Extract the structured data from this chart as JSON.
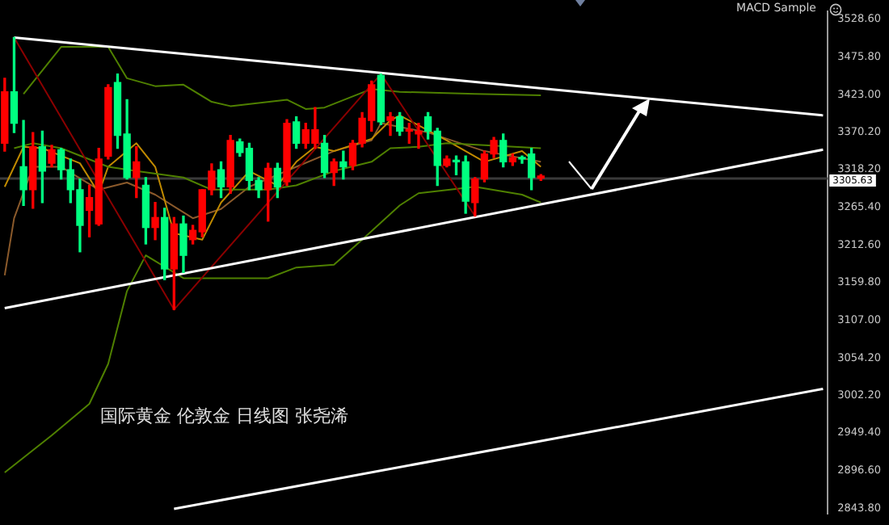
{
  "chart_data": {
    "type": "candlestick",
    "tick_labels": "y",
    "annotations": [
      "国际黄金 伦敦金 日线图 张尧浠",
      "MACD Sample"
    ],
    "categories": [
      null,
      null,
      null,
      null,
      null,
      null,
      null,
      null,
      null,
      null,
      null,
      null,
      null,
      null,
      null,
      null,
      null,
      null,
      null,
      null,
      null,
      null,
      null,
      null,
      null,
      null,
      null,
      null,
      null,
      null,
      null,
      null,
      null,
      null,
      null,
      null,
      null,
      null,
      null,
      null,
      null,
      null,
      null,
      null,
      null,
      null,
      null,
      null,
      null,
      null,
      null,
      null,
      null,
      null,
      null,
      null,
      null,
      null,
      null,
      null,
      null,
      null,
      null,
      null,
      null,
      null,
      null,
      null,
      null,
      null,
      null,
      null,
      null,
      null,
      null,
      null,
      null,
      null,
      null,
      null,
      null,
      null,
      null,
      null,
      null,
      null,
      null,
      null
    ],
    "ohlc": [
      [
        3427,
        3446,
        3344,
        3355
      ],
      [
        3383,
        3503,
        3370,
        3427
      ],
      [
        3290,
        3387,
        3268,
        3322
      ],
      [
        3350,
        3370,
        3264,
        3290
      ],
      [
        3316,
        3372,
        3272,
        3350
      ],
      [
        3346,
        3352,
        3322,
        3327
      ],
      [
        3318,
        3348,
        3305,
        3346
      ],
      [
        3290,
        3333,
        3272,
        3318
      ],
      [
        3240,
        3305,
        3203,
        3290
      ],
      [
        3279,
        3296,
        3224,
        3261
      ],
      [
        3333,
        3348,
        3240,
        3242
      ],
      [
        3433,
        3437,
        3333,
        3337
      ],
      [
        3366,
        3452,
        3348,
        3440
      ],
      [
        3307,
        3416,
        3305,
        3368
      ],
      [
        3329,
        3350,
        3279,
        3307
      ],
      [
        3237,
        3307,
        3214,
        3296
      ],
      [
        3251,
        3272,
        3220,
        3237
      ],
      [
        3179,
        3264,
        3164,
        3251
      ],
      [
        3242,
        3251,
        3122,
        3179
      ],
      [
        3198,
        3253,
        3174,
        3242
      ],
      [
        3233,
        3240,
        3214,
        3220
      ],
      [
        3290,
        3290,
        3224,
        3231
      ],
      [
        3316,
        3326,
        3283,
        3290
      ],
      [
        3294,
        3329,
        3279,
        3318
      ],
      [
        3359,
        3366,
        3285,
        3294
      ],
      [
        3342,
        3361,
        3337,
        3357
      ],
      [
        3303,
        3355,
        3290,
        3348
      ],
      [
        3290,
        3307,
        3279,
        3303
      ],
      [
        3320,
        3327,
        3246,
        3290
      ],
      [
        3294,
        3327,
        3279,
        3320
      ],
      [
        3383,
        3388,
        3296,
        3301
      ],
      [
        3355,
        3392,
        3348,
        3385
      ],
      [
        3374,
        3383,
        3348,
        3355
      ],
      [
        3374,
        3405,
        3348,
        3355
      ],
      [
        3314,
        3366,
        3307,
        3355
      ],
      [
        3329,
        3333,
        3296,
        3314
      ],
      [
        3322,
        3344,
        3305,
        3329
      ],
      [
        3355,
        3359,
        3318,
        3324
      ],
      [
        3390,
        3398,
        3350,
        3355
      ],
      [
        3437,
        3442,
        3372,
        3387
      ],
      [
        3385,
        3452,
        3381,
        3450
      ],
      [
        3392,
        3398,
        3366,
        3387
      ],
      [
        3372,
        3398,
        3366,
        3392
      ],
      [
        3374,
        3383,
        3355,
        3372
      ],
      [
        3372,
        3383,
        3348,
        3368
      ],
      [
        3372,
        3398,
        3361,
        3392
      ],
      [
        3324,
        3376,
        3296,
        3372
      ],
      [
        3333,
        3337,
        3322,
        3324
      ],
      [
        3329,
        3337,
        3311,
        3331
      ],
      [
        3274,
        3337,
        3257,
        3329
      ],
      [
        3305,
        3307,
        3253,
        3272
      ],
      [
        3340,
        3344,
        3301,
        3305
      ],
      [
        3359,
        3363,
        3335,
        3340
      ],
      [
        3329,
        3368,
        3322,
        3359
      ],
      [
        3335,
        3340,
        3324,
        3329
      ],
      [
        3333,
        3337,
        3327,
        3335
      ],
      [
        3307,
        3348,
        3290,
        3340
      ],
      [
        3309,
        3311,
        3303,
        3306
      ],
      null,
      null,
      null,
      null,
      null,
      null,
      null,
      null,
      null,
      null,
      null,
      null,
      null,
      null,
      null,
      null,
      null,
      null,
      null,
      null,
      null,
      null,
      null,
      null,
      null,
      null,
      null,
      null,
      null,
      null
    ],
    "colors": [
      "#ff0000",
      "#00ff80",
      "#00ff80",
      "#ff0000",
      "#00ff80",
      "#ff0000",
      "#00ff80",
      "#00ff80",
      "#00ff80",
      "#ff0000",
      "#ff0000",
      "#ff0000",
      "#00ff80",
      "#00ff80",
      "#ff0000",
      "#00ff80",
      "#ff0000",
      "#00ff80",
      "#ff0000",
      "#00ff80",
      "#ff0000",
      "#ff0000",
      "#ff0000",
      "#00ff80",
      "#ff0000",
      "#00ff80",
      "#00ff80",
      "#00ff80",
      "#ff0000",
      "#00ff80",
      "#ff0000",
      "#00ff80",
      "#ff0000",
      "#ff0000",
      "#00ff80",
      "#ff0000",
      "#00ff80",
      "#ff0000",
      "#ff0000",
      "#ff0000",
      "#00ff80",
      "#ff0000",
      "#00ff80",
      "#ff0000",
      "#ff0000",
      "#00ff80",
      "#00ff80",
      "#ff0000",
      "#00ff80",
      "#00ff80",
      "#ff0000",
      "#ff0000",
      "#ff0000",
      "#00ff80",
      "#ff0000",
      "#00ff80",
      "#00ff80",
      "#ff0000",
      null,
      null,
      null,
      null,
      null,
      null,
      null,
      null,
      null,
      null,
      null,
      null,
      null,
      null,
      null,
      null,
      null,
      null,
      null,
      null,
      null,
      null,
      null,
      null,
      null,
      null,
      null,
      null,
      null,
      null
    ],
    "series": [
      {
        "type": "line",
        "color": "#ffffff",
        "values": [
          null,
          3503,
          null,
          null,
          null,
          null,
          null,
          null,
          null,
          null,
          null,
          null,
          null,
          null,
          null,
          null,
          null,
          null,
          null,
          null,
          null,
          null,
          null,
          null,
          null,
          null,
          null,
          null,
          null,
          null,
          null,
          null,
          null,
          null,
          null,
          null,
          null,
          null,
          null,
          null,
          null,
          null,
          null,
          null,
          null,
          null,
          null,
          null,
          null,
          null,
          null,
          null,
          null,
          null,
          null,
          null,
          null,
          null,
          null,
          null,
          null,
          null,
          null,
          null,
          null,
          null,
          null,
          null,
          null,
          null,
          null,
          null,
          null,
          null,
          null,
          null,
          null,
          null,
          null,
          null,
          null,
          null,
          null,
          null,
          null,
          null,
          null,
          3394
        ]
      },
      {
        "type": "line",
        "color": "#ffffff",
        "values": [
          3124,
          null,
          null,
          null,
          null,
          null,
          null,
          null,
          null,
          null,
          null,
          null,
          null,
          null,
          null,
          null,
          null,
          null,
          null,
          null,
          null,
          null,
          null,
          null,
          null,
          null,
          null,
          null,
          null,
          null,
          null,
          null,
          null,
          null,
          null,
          null,
          null,
          null,
          null,
          null,
          null,
          null,
          null,
          null,
          null,
          null,
          null,
          null,
          null,
          null,
          null,
          null,
          null,
          null,
          null,
          null,
          null,
          null,
          null,
          null,
          null,
          null,
          null,
          null,
          null,
          null,
          null,
          null,
          null,
          null,
          null,
          null,
          null,
          null,
          null,
          null,
          null,
          null,
          null,
          null,
          null,
          null,
          null,
          null,
          null,
          null,
          null,
          3346
        ]
      },
      {
        "type": "line",
        "color": "#ffffff",
        "values": [
          null,
          null,
          null,
          null,
          null,
          null,
          null,
          null,
          null,
          null,
          null,
          null,
          null,
          null,
          null,
          null,
          null,
          null,
          2843,
          null,
          null,
          null,
          null,
          null,
          null,
          null,
          null,
          null,
          null,
          null,
          null,
          null,
          null,
          null,
          null,
          null,
          null,
          null,
          null,
          null,
          null,
          null,
          null,
          null,
          null,
          null,
          null,
          null,
          null,
          null,
          null,
          null,
          null,
          null,
          null,
          null,
          null,
          null,
          null,
          null,
          null,
          null,
          null,
          null,
          null,
          null,
          null,
          null,
          null,
          null,
          null,
          null,
          null,
          null,
          null,
          null,
          null,
          null,
          null,
          null,
          null,
          null,
          null,
          null,
          null,
          null,
          null,
          3011
        ]
      },
      {
        "type": "line",
        "color": "#8b0000",
        "values": [
          null,
          3503,
          null,
          null,
          null,
          null,
          null,
          null,
          null,
          null,
          null,
          null,
          null,
          null,
          null,
          null,
          null,
          null,
          3122,
          null,
          null,
          null,
          null,
          null,
          null,
          null,
          null,
          null,
          null,
          null,
          null,
          null,
          null,
          null,
          null,
          null,
          null,
          null,
          null,
          null,
          3452,
          null,
          null,
          null,
          null,
          null,
          null,
          null,
          null,
          null,
          3253,
          null,
          null,
          null,
          null,
          null,
          null,
          null,
          null,
          null,
          null,
          null,
          null,
          null,
          null,
          null,
          null,
          null,
          null,
          null,
          null,
          null,
          null,
          null,
          null,
          null,
          null,
          null,
          null,
          null,
          null,
          null,
          null,
          null,
          null,
          null,
          null,
          null
        ]
      },
      {
        "type": "line",
        "color": "#4f8000",
        "values": [
          null,
          null,
          3424,
          null,
          null,
          null,
          3490,
          null,
          null,
          null,
          null,
          3490,
          null,
          3446,
          null,
          null,
          3435,
          null,
          null,
          3437,
          null,
          null,
          3413,
          null,
          3407,
          null,
          null,
          null,
          null,
          null,
          3416,
          null,
          3403,
          null,
          3405,
          null,
          null,
          null,
          null,
          3431,
          null,
          null,
          3427,
          null,
          null,
          null,
          null,
          null,
          null,
          null,
          3424,
          null,
          null,
          null,
          null,
          null,
          null,
          3422,
          null,
          null,
          null,
          null,
          null,
          null,
          null,
          null,
          null,
          null,
          null,
          null,
          null,
          null,
          null,
          null,
          null,
          null,
          null,
          null,
          null,
          null,
          null,
          null,
          null,
          null,
          null,
          null,
          null,
          null
        ]
      },
      {
        "type": "line",
        "color": "#4f8000",
        "values": [
          null,
          3348,
          null,
          3355,
          null,
          null,
          3348,
          null,
          null,
          null,
          null,
          3322,
          null,
          null,
          3316,
          null,
          null,
          null,
          null,
          3307,
          null,
          null,
          3290,
          null,
          null,
          null,
          null,
          null,
          3290,
          null,
          null,
          3296,
          null,
          null,
          null,
          3316,
          null,
          null,
          null,
          3329,
          null,
          3348,
          null,
          null,
          3350,
          null,
          null,
          3355,
          null,
          null,
          null,
          null,
          null,
          null,
          null,
          null,
          null,
          3348,
          null,
          null,
          null,
          null,
          null,
          null,
          null,
          null,
          null,
          null,
          null,
          null,
          null,
          null,
          null,
          null,
          null,
          null,
          null,
          null,
          null,
          null,
          null,
          null,
          null,
          null,
          null,
          null,
          null,
          null
        ]
      },
      {
        "type": "line",
        "color": "#4f8000",
        "values": [
          2894,
          null,
          null,
          null,
          null,
          2946,
          null,
          null,
          null,
          2990,
          null,
          3046,
          null,
          3148,
          null,
          3198,
          null,
          null,
          null,
          3166,
          null,
          null,
          null,
          null,
          null,
          null,
          null,
          null,
          3166,
          null,
          null,
          3181,
          null,
          null,
          null,
          3185,
          null,
          null,
          3220,
          null,
          null,
          null,
          3268,
          null,
          3285,
          null,
          null,
          null,
          null,
          null,
          3294,
          null,
          null,
          null,
          null,
          3283,
          null,
          3272,
          null,
          null,
          null,
          null,
          null,
          null,
          null,
          null,
          null,
          null,
          null,
          null,
          null,
          null,
          null,
          null,
          null,
          null,
          null,
          null,
          null,
          null,
          null,
          null,
          null,
          null,
          null,
          null,
          null,
          null
        ]
      },
      {
        "type": "line",
        "color": "#c08a00",
        "values": [
          3294,
          null,
          3350,
          null,
          3348,
          null,
          null,
          null,
          3327,
          null,
          3285,
          3322,
          null,
          null,
          3355,
          null,
          3322,
          null,
          3229,
          null,
          null,
          3220,
          null,
          3272,
          null,
          null,
          3316,
          null,
          null,
          3296,
          null,
          3329,
          null,
          3350,
          null,
          3344,
          null,
          null,
          null,
          3361,
          null,
          3387,
          3394,
          null,
          null,
          null,
          null,
          3359,
          null,
          null,
          null,
          3329,
          null,
          null,
          null,
          3344,
          null,
          3322,
          null,
          null,
          null,
          null,
          null,
          null,
          null,
          null,
          null,
          null,
          null,
          null,
          null,
          null,
          null,
          null,
          null,
          null,
          null,
          null,
          null,
          null,
          null,
          null,
          null,
          null,
          null,
          null,
          null,
          null
        ]
      },
      {
        "type": "line",
        "color": "#8b5a2b",
        "values": [
          3170,
          3250,
          null,
          3322,
          null,
          null,
          3322,
          null,
          null,
          null,
          3290,
          null,
          null,
          3300,
          null,
          null,
          3283,
          null,
          null,
          null,
          3250,
          null,
          null,
          3263,
          null,
          null,
          3294,
          null,
          null,
          null,
          null,
          3322,
          null,
          null,
          null,
          3344,
          null,
          null,
          null,
          3359,
          3383,
          null,
          null,
          null,
          null,
          3370,
          null,
          null,
          null,
          null,
          null,
          3344,
          null,
          null,
          null,
          null,
          null,
          3329,
          null,
          null,
          null,
          null,
          null,
          null,
          null,
          null,
          null,
          null,
          null,
          null,
          null,
          null,
          null,
          null,
          null,
          null,
          null,
          null,
          null,
          null,
          null,
          null,
          null,
          null,
          null,
          null,
          null,
          null
        ]
      }
    ],
    "ylim": [
      2836,
      3540
    ],
    "yticks": [
      {
        "value": 3528.6,
        "label": "3528.60"
      },
      {
        "value": 3475.8,
        "label": "3475.80"
      },
      {
        "value": 3423,
        "label": "3423.00"
      },
      {
        "value": 3370.2,
        "label": "3370.20"
      },
      {
        "value": 3318.2,
        "label": "3318.20"
      },
      {
        "value": 3265.4,
        "label": "3265.40"
      },
      {
        "value": 3212.6,
        "label": "3212.60"
      },
      {
        "value": 3159.8,
        "label": "3159.80"
      },
      {
        "value": 3107,
        "label": "3107.00"
      },
      {
        "value": 3054.2,
        "label": "3054.20"
      },
      {
        "value": 3002.2,
        "label": "3002.20"
      },
      {
        "value": 2949.4,
        "label": "2949.40"
      },
      {
        "value": 2896.6,
        "label": "2896.60"
      },
      {
        "value": 2843.8,
        "label": "2843.80"
      }
    ],
    "ref_lines": [
      {
        "axis": "y",
        "value": 3305.63,
        "label": "3305.63",
        "color": "#3a3a3a"
      }
    ]
  }
}
